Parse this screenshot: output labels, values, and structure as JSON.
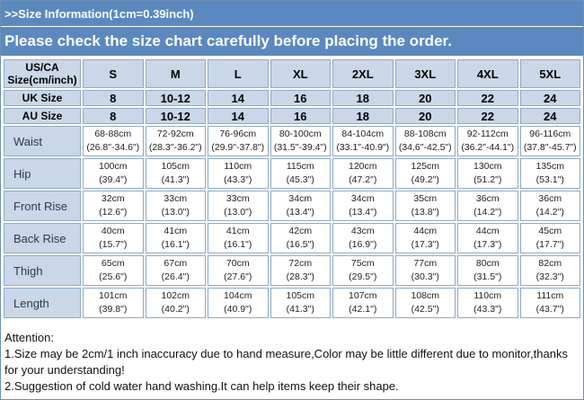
{
  "header": {
    "title": ">>Size Information(1cm=0.39inch)",
    "notice": "Please check the size chart carefully before placing the order."
  },
  "table": {
    "corner_line1": "US/CA",
    "corner_line2": "Size(cm/inch)",
    "sizes": [
      "S",
      "M",
      "L",
      "XL",
      "2XL",
      "3XL",
      "4XL",
      "5XL"
    ],
    "uk": {
      "label": "UK Size",
      "values": [
        "8",
        "10-12",
        "14",
        "16",
        "18",
        "20",
        "22",
        "24"
      ]
    },
    "au": {
      "label": "AU Size",
      "values": [
        "8",
        "10-12",
        "14",
        "16",
        "18",
        "20",
        "22",
        "24"
      ]
    },
    "measurements": [
      {
        "label": "Waist",
        "cm": [
          "68-88cm",
          "72-92cm",
          "76-96cm",
          "80-100cm",
          "84-104cm",
          "88-108cm",
          "92-112cm",
          "96-116cm"
        ],
        "inch": [
          "(26.8\"-34.6\")",
          "(28.3\"-36.2\")",
          "(29.9\"-37.8\")",
          "(31.5\"-39.4\")",
          "(33.1\"-40.9\")",
          "(34.6\"-42.5\")",
          "(36.2\"-44.1\")",
          "(37.8\"-45.7\")"
        ]
      },
      {
        "label": "Hip",
        "cm": [
          "100cm",
          "105cm",
          "110cm",
          "115cm",
          "120cm",
          "125cm",
          "130cm",
          "135cm"
        ],
        "inch": [
          "(39.4\")",
          "(41.3\")",
          "(43.3\")",
          "(45.3\")",
          "(47.2\")",
          "(49.2\")",
          "(51.2\")",
          "(53.1\")"
        ]
      },
      {
        "label": "Front Rise",
        "cm": [
          "32cm",
          "33cm",
          "33cm",
          "34cm",
          "34cm",
          "35cm",
          "36cm",
          "36cm"
        ],
        "inch": [
          "(12.6\")",
          "(13.0\")",
          "(13.0\")",
          "(13.4\")",
          "(13.4\")",
          "(13.8\")",
          "(14.2\")",
          "(14.2\")"
        ]
      },
      {
        "label": "Back Rise",
        "cm": [
          "40cm",
          "41cm",
          "41cm",
          "42cm",
          "43cm",
          "44cm",
          "44cm",
          "45cm"
        ],
        "inch": [
          "(15.7\")",
          "(16.1\")",
          "(16.1\")",
          "(16.5\")",
          "(16.9\")",
          "(17.3\")",
          "(17.3\")",
          "(17.7\")"
        ]
      },
      {
        "label": "Thigh",
        "cm": [
          "65cm",
          "67cm",
          "70cm",
          "72cm",
          "75cm",
          "77cm",
          "80cm",
          "82cm"
        ],
        "inch": [
          "(25.6\")",
          "(26.4\")",
          "(27.6\")",
          "(28.3\")",
          "(29.5\")",
          "(30.3\")",
          "(31.5\")",
          "(32.3\")"
        ]
      },
      {
        "label": "Length",
        "cm": [
          "101cm",
          "102cm",
          "104cm",
          "105cm",
          "107cm",
          "108cm",
          "110cm",
          "111cm"
        ],
        "inch": [
          "(39.8\")",
          "(40.2\")",
          "(40.9\")",
          "(41.3\")",
          "(42.1\")",
          "(42.5\")",
          "(43.3\")",
          "(43.7\")"
        ]
      }
    ]
  },
  "notes": {
    "heading": "Attention:",
    "line1": "1.Size may be 2cm/1 inch inaccuracy due to hand measure,Color may be little different due to monitor,thanks for your understanding!",
    "line2": "2.Suggestion of cold water hand washing.It can help items keep their shape."
  },
  "colors": {
    "header_bg": "#5b88bf",
    "label_cell_bg": "#cad7e8",
    "cell_border": "#8fa9c6"
  }
}
